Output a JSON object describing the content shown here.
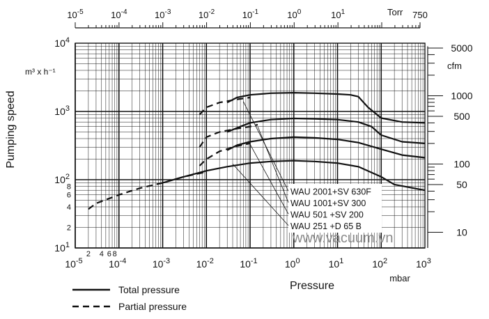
{
  "chart_data": {
    "type": "line",
    "ylabel": "Pumping speed",
    "y_unit": "m³ x h⁻¹",
    "right_unit": "cfm",
    "xlabel": "Pressure",
    "x_unit": "mbar",
    "top_unit": "Torr",
    "x_scale": "log",
    "y_scale": "log",
    "xlim": [
      1e-05,
      1000
    ],
    "ylim": [
      10,
      10000
    ],
    "top_lim": [
      1e-05,
      750
    ],
    "grid": true,
    "watermark": "www.vacuum.vn",
    "x_ticks": [
      {
        "b": "10",
        "e": "-5",
        "v": 1e-05
      },
      {
        "b": "10",
        "e": "-4",
        "v": 0.0001
      },
      {
        "b": "10",
        "e": "-3",
        "v": 0.001
      },
      {
        "b": "10",
        "e": "-2",
        "v": 0.01
      },
      {
        "b": "10",
        "e": "-1",
        "v": 0.1
      },
      {
        "b": "10",
        "e": "0",
        "v": 1
      },
      {
        "b": "10",
        "e": "1",
        "v": 10
      },
      {
        "b": "10",
        "e": "2",
        "v": 100
      },
      {
        "b": "10",
        "e": "3",
        "v": 1000
      }
    ],
    "x_minor_labels": [
      {
        "t": "2",
        "v": 2e-05
      },
      {
        "t": "4",
        "v": 4e-05
      },
      {
        "t": "6",
        "v": 6e-05
      },
      {
        "t": "8",
        "v": 8e-05
      }
    ],
    "top_ticks": [
      {
        "b": "10",
        "e": "-5",
        "v": 1e-05
      },
      {
        "b": "10",
        "e": "-4",
        "v": 0.0001
      },
      {
        "b": "10",
        "e": "-3",
        "v": 0.001
      },
      {
        "b": "10",
        "e": "-2",
        "v": 0.01
      },
      {
        "b": "10",
        "e": "-1",
        "v": 0.1
      },
      {
        "b": "10",
        "e": "0",
        "v": 1
      },
      {
        "b": "10",
        "e": "1",
        "v": 10
      },
      {
        "t": "750",
        "v": 750
      }
    ],
    "y_ticks": [
      {
        "b": "10",
        "e": "4",
        "v": 10000
      },
      {
        "b": "10",
        "e": "3",
        "v": 1000
      },
      {
        "b": "10",
        "e": "2",
        "v": 100
      },
      {
        "b": "10",
        "e": "1",
        "v": 10
      }
    ],
    "y_minor_labels": [
      {
        "t": "8",
        "v": 80
      },
      {
        "t": "6",
        "v": 60
      },
      {
        "t": "4",
        "v": 40
      },
      {
        "t": "2",
        "v": 20
      }
    ],
    "cfm_ticks": [
      {
        "t": "5000",
        "v": 8495
      },
      {
        "t": "1000",
        "v": 1699
      },
      {
        "t": "500",
        "v": 850
      },
      {
        "t": "100",
        "v": 170
      },
      {
        "t": "50",
        "v": 85
      },
      {
        "t": "10",
        "v": 17
      }
    ],
    "legend": [
      {
        "label": "Total pressure",
        "style": "solid"
      },
      {
        "label": "Partial pressure",
        "style": "dashed"
      }
    ],
    "series": [
      {
        "name": "WAU 2001+SV 630F",
        "total": [
          [
            0.03,
            1350
          ],
          [
            0.05,
            1600
          ],
          [
            0.1,
            1750
          ],
          [
            0.3,
            1850
          ],
          [
            1,
            1880
          ],
          [
            3,
            1850
          ],
          [
            10,
            1800
          ],
          [
            20,
            1750
          ],
          [
            30,
            1650
          ],
          [
            50,
            1150
          ],
          [
            100,
            800
          ],
          [
            300,
            700
          ],
          [
            1000,
            680
          ]
        ],
        "partial": [
          [
            0.007,
            900
          ],
          [
            0.01,
            1150
          ],
          [
            0.02,
            1350
          ],
          [
            0.05,
            1500
          ],
          [
            0.1,
            1600
          ]
        ],
        "label_anchor": [
          0.07,
          1400
        ]
      },
      {
        "name": "WAU 1001+SV 300",
        "total": [
          [
            0.03,
            500
          ],
          [
            0.06,
            600
          ],
          [
            0.1,
            680
          ],
          [
            0.3,
            760
          ],
          [
            1,
            790
          ],
          [
            3,
            780
          ],
          [
            10,
            760
          ],
          [
            30,
            700
          ],
          [
            60,
            600
          ],
          [
            100,
            450
          ],
          [
            300,
            360
          ],
          [
            1000,
            340
          ]
        ],
        "partial": [
          [
            0.007,
            300
          ],
          [
            0.01,
            420
          ],
          [
            0.02,
            500
          ],
          [
            0.05,
            560
          ],
          [
            0.1,
            600
          ],
          [
            0.15,
            640
          ]
        ],
        "label_anchor": [
          0.15,
          600
        ]
      },
      {
        "name": "WAU 501  +SV 200",
        "total": [
          [
            0.03,
            270
          ],
          [
            0.05,
            320
          ],
          [
            0.1,
            360
          ],
          [
            0.3,
            400
          ],
          [
            1,
            420
          ],
          [
            3,
            410
          ],
          [
            10,
            390
          ],
          [
            30,
            350
          ],
          [
            100,
            280
          ],
          [
            300,
            230
          ],
          [
            1000,
            210
          ]
        ],
        "partial": [
          [
            0.007,
            160
          ],
          [
            0.01,
            200
          ],
          [
            0.02,
            260
          ],
          [
            0.05,
            310
          ],
          [
            0.1,
            340
          ]
        ],
        "label_anchor": [
          0.1,
          330
        ]
      },
      {
        "name": "WAU 251  +D 65 B",
        "total": [
          [
            0.001,
            90
          ],
          [
            0.003,
            110
          ],
          [
            0.01,
            135
          ],
          [
            0.03,
            155
          ],
          [
            0.1,
            175
          ],
          [
            0.3,
            185
          ],
          [
            1,
            190
          ],
          [
            3,
            185
          ],
          [
            10,
            175
          ],
          [
            30,
            155
          ],
          [
            100,
            110
          ],
          [
            200,
            85
          ],
          [
            1000,
            70
          ]
        ],
        "partial": [
          [
            2e-05,
            37
          ],
          [
            3e-05,
            45
          ],
          [
            0.0001,
            60
          ],
          [
            0.0003,
            75
          ],
          [
            0.001,
            90
          ],
          [
            0.003,
            110
          ],
          [
            0.01,
            130
          ]
        ],
        "label_anchor": [
          0.04,
          170
        ]
      }
    ]
  }
}
